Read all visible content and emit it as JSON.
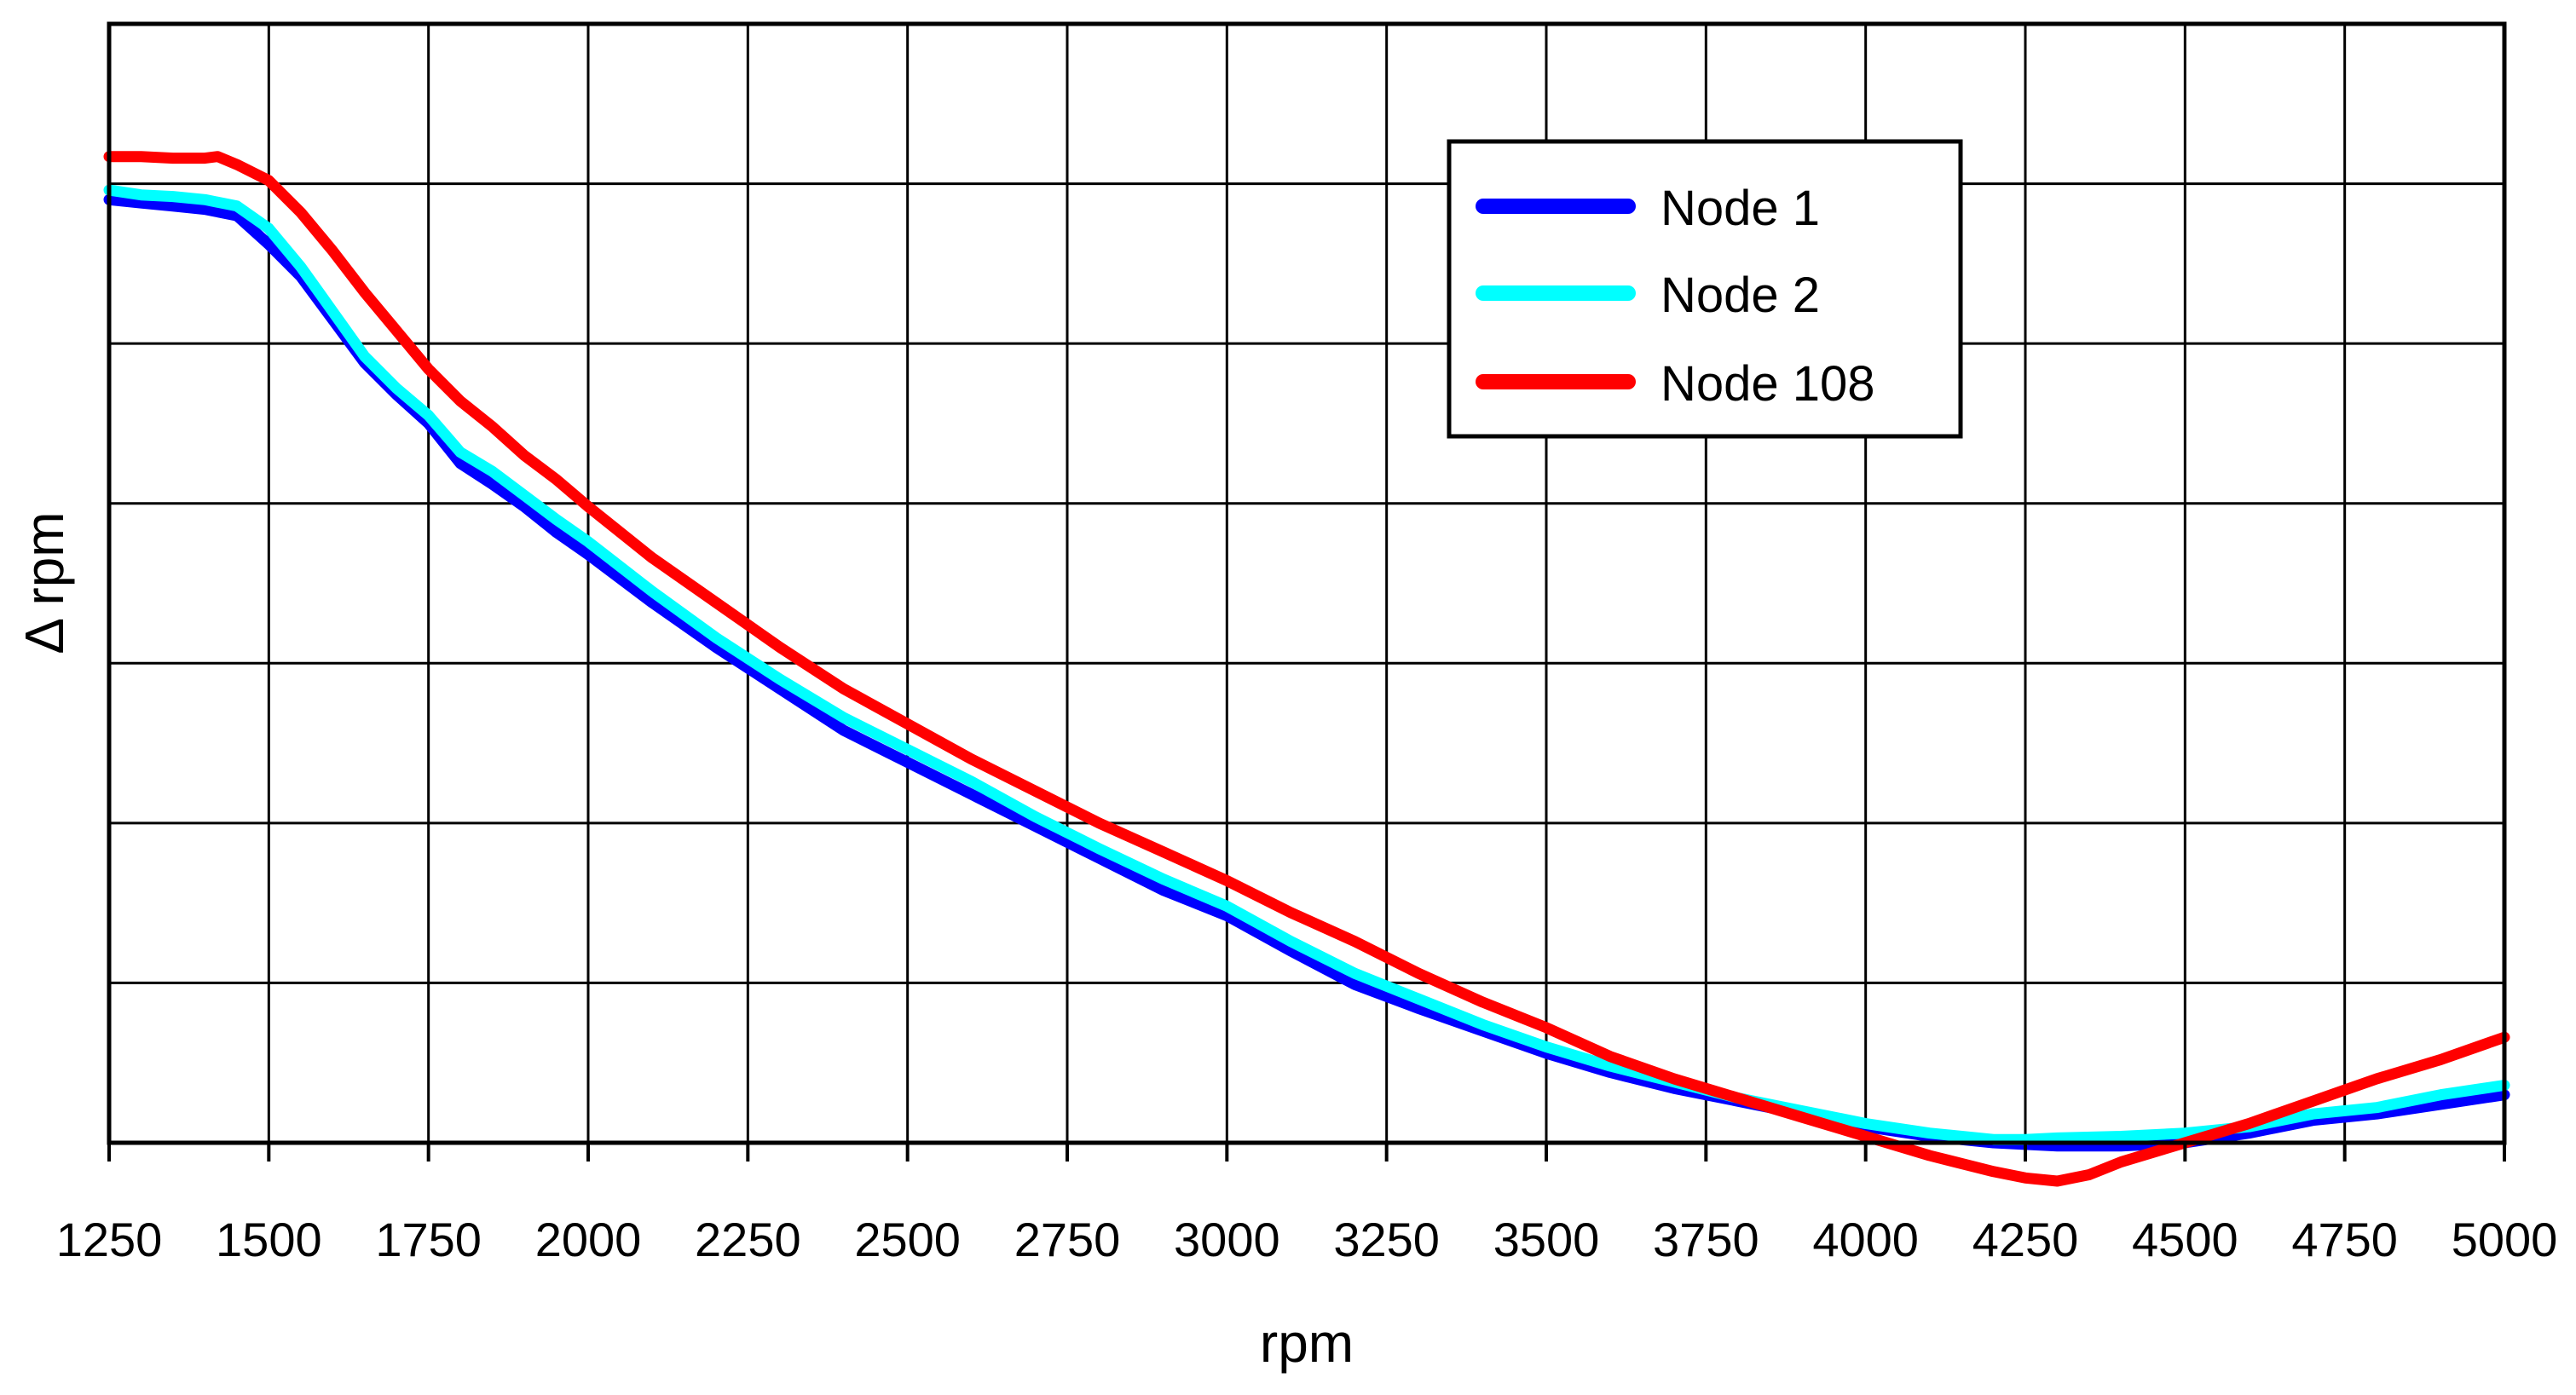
{
  "chart_data": {
    "type": "line",
    "title": "",
    "xlabel": "rpm",
    "ylabel": "Δ rpm",
    "xlim": [
      1250,
      5000
    ],
    "ylim": [
      0,
      7
    ],
    "x_ticks": [
      1250,
      1500,
      1750,
      2000,
      2250,
      2500,
      2750,
      3000,
      3250,
      3500,
      3750,
      4000,
      4250,
      4500,
      4750,
      5000
    ],
    "x_tick_labels": [
      "1250",
      "1500",
      "1750",
      "2000",
      "2250",
      "2500",
      "2750",
      "3000",
      "3250",
      "3500",
      "3750",
      "4000",
      "4250",
      "4500",
      "4750",
      "5000"
    ],
    "y_gridlines": [
      0,
      1,
      2,
      3,
      4,
      5,
      6,
      7
    ],
    "y_tick_labels_shown": false,
    "grid": true,
    "legend": "top-right",
    "series": [
      {
        "name": "Node 1",
        "color": "#0000ff",
        "x": [
          1250,
          1300,
          1350,
          1400,
          1450,
          1500,
          1550,
          1600,
          1650,
          1700,
          1750,
          1800,
          1850,
          1900,
          1950,
          2000,
          2100,
          2200,
          2300,
          2400,
          2500,
          2600,
          2700,
          2800,
          2900,
          3000,
          3100,
          3200,
          3300,
          3400,
          3500,
          3600,
          3700,
          3800,
          3900,
          4000,
          4100,
          4200,
          4250,
          4300,
          4400,
          4500,
          4600,
          4700,
          4800,
          4900,
          5000
        ],
        "values": [
          5.9,
          5.88,
          5.86,
          5.84,
          5.8,
          5.62,
          5.42,
          5.15,
          4.88,
          4.68,
          4.5,
          4.25,
          4.12,
          3.98,
          3.82,
          3.68,
          3.38,
          3.1,
          2.84,
          2.58,
          2.38,
          2.18,
          1.98,
          1.78,
          1.58,
          1.42,
          1.2,
          0.99,
          0.84,
          0.7,
          0.56,
          0.44,
          0.34,
          0.26,
          0.18,
          0.1,
          0.04,
          0.0,
          -0.01,
          -0.02,
          -0.02,
          0.0,
          0.06,
          0.14,
          0.18,
          0.24,
          0.3
        ]
      },
      {
        "name": "Node 2",
        "color": "#00ffff",
        "x": [
          1250,
          1300,
          1350,
          1400,
          1450,
          1500,
          1550,
          1600,
          1650,
          1700,
          1750,
          1800,
          1850,
          1900,
          1950,
          2000,
          2100,
          2200,
          2300,
          2400,
          2500,
          2600,
          2700,
          2800,
          2900,
          3000,
          3100,
          3200,
          3300,
          3400,
          3500,
          3600,
          3700,
          3800,
          3900,
          4000,
          4100,
          4200,
          4250,
          4300,
          4400,
          4500,
          4600,
          4700,
          4800,
          4900,
          5000
        ],
        "values": [
          5.96,
          5.93,
          5.92,
          5.9,
          5.86,
          5.72,
          5.48,
          5.2,
          4.92,
          4.72,
          4.55,
          4.32,
          4.2,
          4.05,
          3.9,
          3.76,
          3.45,
          3.16,
          2.9,
          2.66,
          2.46,
          2.26,
          2.04,
          1.84,
          1.65,
          1.48,
          1.26,
          1.06,
          0.9,
          0.74,
          0.6,
          0.48,
          0.38,
          0.28,
          0.2,
          0.12,
          0.06,
          0.02,
          0.02,
          0.03,
          0.04,
          0.06,
          0.1,
          0.18,
          0.22,
          0.3,
          0.36
        ]
      },
      {
        "name": "Node 108",
        "color": "#ff0000",
        "x": [
          1250,
          1300,
          1350,
          1400,
          1420,
          1450,
          1500,
          1550,
          1600,
          1650,
          1700,
          1750,
          1800,
          1850,
          1900,
          1950,
          2000,
          2100,
          2200,
          2300,
          2400,
          2500,
          2600,
          2700,
          2800,
          2900,
          3000,
          3100,
          3200,
          3300,
          3400,
          3500,
          3600,
          3700,
          3800,
          3900,
          4000,
          4100,
          4200,
          4250,
          4300,
          4350,
          4400,
          4500,
          4600,
          4700,
          4800,
          4900,
          5000
        ],
        "values": [
          6.17,
          6.17,
          6.16,
          6.16,
          6.17,
          6.12,
          6.02,
          5.82,
          5.58,
          5.32,
          5.08,
          4.84,
          4.64,
          4.48,
          4.3,
          4.15,
          3.98,
          3.66,
          3.38,
          3.1,
          2.84,
          2.62,
          2.4,
          2.2,
          2.0,
          1.82,
          1.64,
          1.44,
          1.26,
          1.06,
          0.88,
          0.72,
          0.54,
          0.4,
          0.28,
          0.16,
          0.04,
          -0.08,
          -0.18,
          -0.22,
          -0.24,
          -0.2,
          -0.12,
          0.0,
          0.12,
          0.26,
          0.4,
          0.52,
          0.66
        ]
      }
    ]
  }
}
